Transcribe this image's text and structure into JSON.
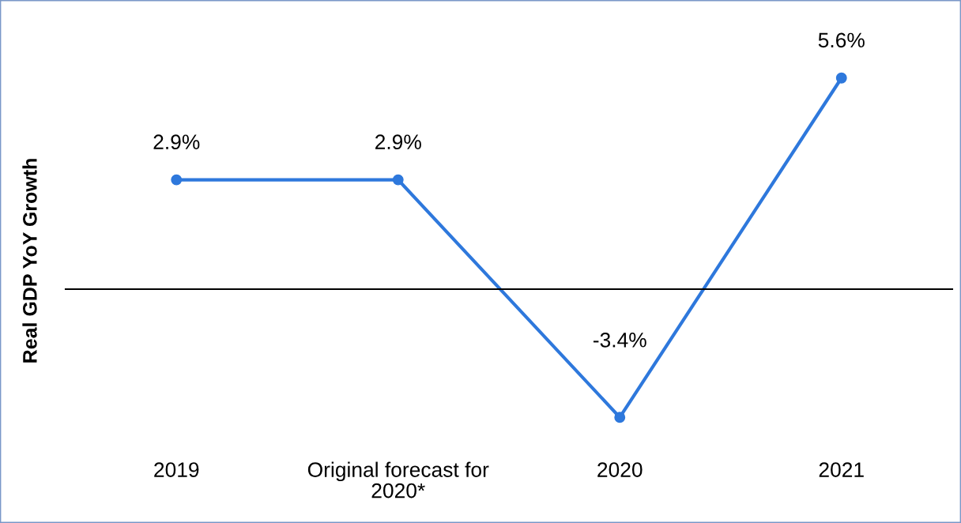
{
  "chart_data": {
    "type": "line",
    "ylabel": "Real GDP YoY Growth",
    "categories": [
      "2019",
      "Original forecast for\n2020*",
      "2020",
      "2021"
    ],
    "series": [
      {
        "color": "#2e78dc",
        "values": [
          2.9,
          2.9,
          -3.4,
          5.6
        ],
        "value_labels": [
          "2.9%",
          "2.9%",
          "-3.4%",
          "5.6%"
        ]
      }
    ],
    "marker": "circle",
    "line_style": "solid",
    "tick_labels": "x"
  }
}
